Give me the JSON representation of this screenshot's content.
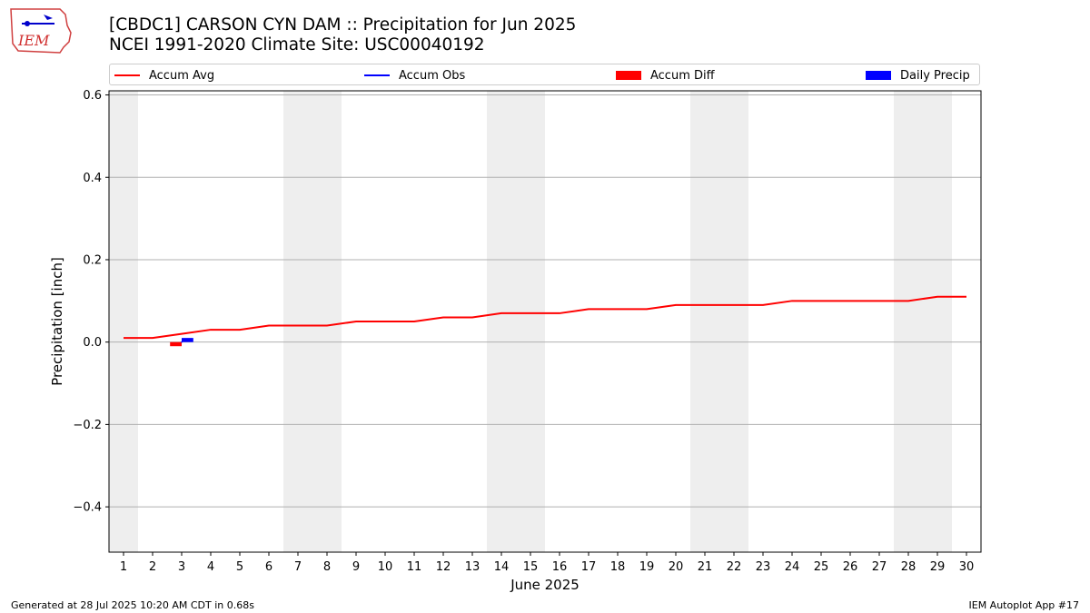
{
  "logo": {
    "text": "IEM"
  },
  "title": {
    "line1": "[CBDC1] CARSON CYN DAM :: Precipitation for Jun 2025",
    "line2": "NCEI 1991-2020 Climate Site: USC00040192"
  },
  "legend": [
    {
      "label": "Accum Avg",
      "color": "#ff0000",
      "kind": "line"
    },
    {
      "label": "Accum Obs",
      "color": "#0000ff",
      "kind": "line"
    },
    {
      "label": "Accum Diff",
      "color": "#ff0000",
      "kind": "patch"
    },
    {
      "label": "Daily Precip",
      "color": "#0000ff",
      "kind": "patch"
    }
  ],
  "footer": {
    "left": "Generated at 28 Jul 2025 10:20 AM CDT in 0.68s",
    "right": "IEM Autoplot App #17"
  },
  "chart_data": {
    "type": "line",
    "xlabel": "June 2025",
    "ylabel": "Precipitation [inch]",
    "xlim": [
      0.5,
      30.5
    ],
    "ylim": [
      -0.51,
      0.61
    ],
    "x_ticks": [
      1,
      2,
      3,
      4,
      5,
      6,
      7,
      8,
      9,
      10,
      11,
      12,
      13,
      14,
      15,
      16,
      17,
      18,
      19,
      20,
      21,
      22,
      23,
      24,
      25,
      26,
      27,
      28,
      29,
      30
    ],
    "y_ticks": [
      -0.4,
      -0.2,
      0.0,
      0.2,
      0.4,
      0.6
    ],
    "y_tick_labels": [
      "−0.4",
      "−0.2",
      "0.0",
      "0.2",
      "0.4",
      "0.6"
    ],
    "grid": "horizontal",
    "legend_position": "top",
    "weekend_shading": [
      [
        0.5,
        1.5
      ],
      [
        6.5,
        8.5
      ],
      [
        13.5,
        15.5
      ],
      [
        20.5,
        22.5
      ],
      [
        27.5,
        29.5
      ]
    ],
    "series": [
      {
        "name": "Accum Avg",
        "kind": "line",
        "color": "#ff0000",
        "x": [
          1,
          2,
          3,
          4,
          5,
          6,
          7,
          8,
          9,
          10,
          11,
          12,
          13,
          14,
          15,
          16,
          17,
          18,
          19,
          20,
          21,
          22,
          23,
          24,
          25,
          26,
          27,
          28,
          29,
          30
        ],
        "values": [
          0.01,
          0.01,
          0.02,
          0.03,
          0.03,
          0.04,
          0.04,
          0.04,
          0.05,
          0.05,
          0.05,
          0.06,
          0.06,
          0.07,
          0.07,
          0.07,
          0.08,
          0.08,
          0.08,
          0.09,
          0.09,
          0.09,
          0.09,
          0.1,
          0.1,
          0.1,
          0.1,
          0.1,
          0.11,
          0.11
        ]
      },
      {
        "name": "Accum Obs",
        "kind": "line",
        "color": "#0000ff",
        "x": [
          3
        ],
        "values": [
          0.0
        ]
      },
      {
        "name": "Accum Diff",
        "kind": "bar",
        "color": "#ff0000",
        "x": [
          3
        ],
        "values": [
          -0.01
        ]
      },
      {
        "name": "Daily Precip",
        "kind": "bar",
        "color": "#0000ff",
        "x": [
          3
        ],
        "values": [
          0.01
        ]
      }
    ]
  }
}
